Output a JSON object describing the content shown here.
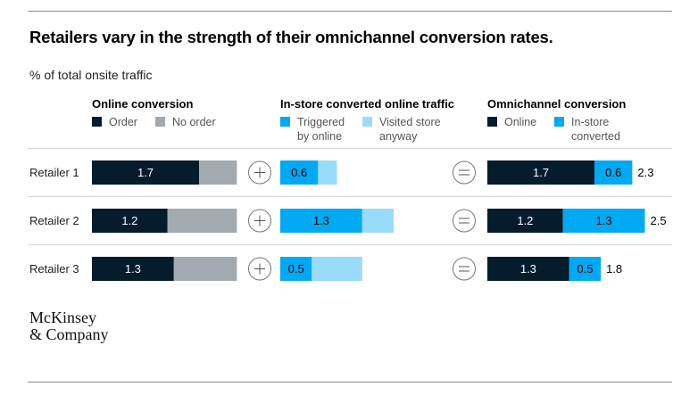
{
  "chart_data": {
    "type": "bar",
    "title": "Retailers vary in the strength of their omnichannel conversion rates.",
    "subtitle": "% of total onsite traffic",
    "categories": [
      "Retailer 1",
      "Retailer 2",
      "Retailer 3"
    ],
    "groups": [
      {
        "title": "Online conversion",
        "series": [
          {
            "name": "Order",
            "values": [
              1.7,
              1.2,
              1.3
            ],
            "labeled": true
          },
          {
            "name": "No order",
            "values": [
              0.6,
              1.1,
              1.0
            ],
            "labeled": false
          }
        ]
      },
      {
        "title": "In-store converted online traffic",
        "series": [
          {
            "name": "Triggered\nby online",
            "values": [
              0.6,
              1.3,
              0.5
            ],
            "labeled": true
          },
          {
            "name": "Visited store\nanyway",
            "values": [
              0.3,
              0.5,
              0.8
            ],
            "labeled": false
          }
        ]
      },
      {
        "title": "Omnichannel conversion",
        "series": [
          {
            "name": "Online",
            "values": [
              1.7,
              1.2,
              1.3
            ],
            "labeled": true
          },
          {
            "name": "In-store\nconverted",
            "values": [
              0.6,
              1.3,
              0.5
            ],
            "labeled": true
          }
        ],
        "totals": [
          2.3,
          2.5,
          1.8
        ]
      }
    ],
    "colors": {
      "order": "#051c2c",
      "no_order": "#a2aab0",
      "triggered": "#00a9f4",
      "visited": "#99dbfa",
      "online": "#051c2c",
      "instore": "#00a9f4"
    },
    "operators": [
      "+",
      "="
    ]
  },
  "logo": {
    "line1": "McKinsey",
    "line2": "& Company"
  }
}
